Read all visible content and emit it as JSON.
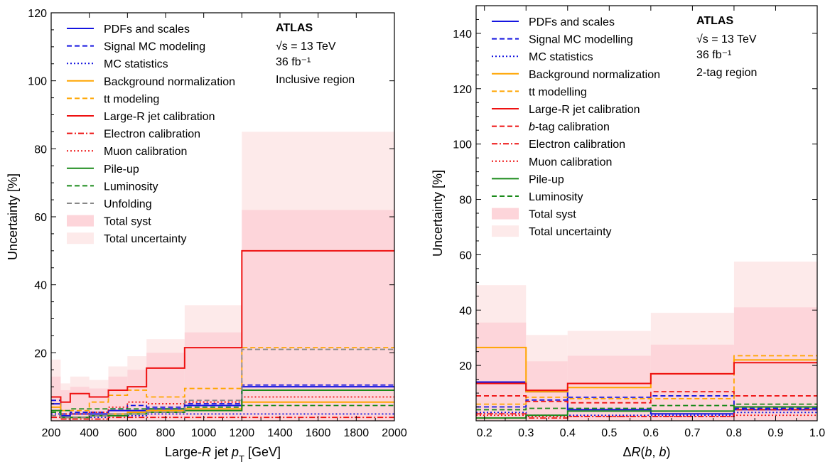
{
  "chart_data": [
    {
      "type": "line",
      "step": true,
      "xlabel": "Large-R jet pT [GeV]",
      "xlabel_parts": [
        "Large-",
        "R",
        " jet ",
        "p",
        "T",
        " [GeV]"
      ],
      "ylabel": "Uncertainty [%]",
      "xlim": [
        200,
        2000
      ],
      "ylim": [
        0,
        120
      ],
      "xticks": [
        200,
        400,
        600,
        800,
        1000,
        1200,
        1400,
        1600,
        1800,
        2000
      ],
      "yticks": [
        20,
        40,
        60,
        80,
        100,
        120
      ],
      "bin_edges": [
        200,
        250,
        300,
        400,
        500,
        600,
        700,
        900,
        1200,
        2000
      ],
      "legend_position": "top-left",
      "annotation": {
        "atlas": "ATLAS",
        "sqrt_s": "√s = 13 TeV",
        "lumi": "36 fb⁻¹",
        "region": "Inclusive region"
      },
      "bands": [
        {
          "name": "Total uncertainty",
          "color": "#fdeaea",
          "values": [
            18,
            11,
            13,
            12,
            16,
            19,
            24,
            34,
            85
          ]
        },
        {
          "name": "Total syst",
          "color": "#fdd5da",
          "values": [
            13,
            9,
            10,
            9.5,
            13,
            15,
            20,
            26,
            62
          ]
        }
      ],
      "series": [
        {
          "name": "PDFs and scales",
          "color": "#1515e0",
          "dash": "solid",
          "values": [
            5,
            1.5,
            2,
            2,
            3,
            3,
            3.5,
            4.5,
            10
          ]
        },
        {
          "name": "Signal MC modeling",
          "color": "#1515e0",
          "dash": "dashed",
          "values": [
            6,
            2,
            2.5,
            2.5,
            3.5,
            4.5,
            4,
            5,
            10.5
          ]
        },
        {
          "name": "MC statistics",
          "color": "#1515e0",
          "dash": "dotted",
          "values": [
            2,
            1,
            1,
            1,
            1.5,
            1.5,
            2,
            2,
            2
          ]
        },
        {
          "name": "Background normalization",
          "color": "#ffa500",
          "dash": "solid",
          "values": [
            4,
            1,
            1,
            1.5,
            2,
            2.5,
            3,
            3.5,
            5.5
          ]
        },
        {
          "name": "tt modeling",
          "color": "#ffa500",
          "dash": "dashed",
          "values": [
            7,
            3,
            3,
            5.5,
            7.5,
            9,
            7,
            9.5,
            21.5
          ]
        },
        {
          "name": "Large-R jet calibration",
          "color": "#ee1111",
          "dash": "solid",
          "values": [
            7,
            5.5,
            8,
            7,
            9,
            10,
            15.5,
            21.5,
            50
          ]
        },
        {
          "name": "Electron calibration",
          "color": "#ee1111",
          "dash": "dashdot",
          "values": [
            1,
            0.5,
            0.5,
            0.5,
            1,
            1,
            1,
            1,
            1
          ]
        },
        {
          "name": "Muon calibration",
          "color": "#ee1111",
          "dash": "dotted",
          "values": [
            3,
            2,
            2,
            2.5,
            4,
            5.5,
            5,
            5.5,
            7
          ]
        },
        {
          "name": "Pile-up",
          "color": "#1a8a1a",
          "dash": "solid",
          "values": [
            3,
            1,
            1,
            1.5,
            1.5,
            2,
            2.5,
            3,
            9
          ]
        },
        {
          "name": "Luminosity",
          "color": "#1a8a1a",
          "dash": "dashed",
          "values": [
            2.5,
            3,
            3.5,
            3.5,
            3.5,
            3.5,
            3.5,
            4,
            4.5
          ]
        },
        {
          "name": "Unfolding",
          "color": "#888888",
          "dash": "dashed",
          "values": [
            1.5,
            1,
            1,
            1.5,
            2,
            2,
            2.5,
            6,
            21
          ]
        }
      ]
    },
    {
      "type": "line",
      "step": true,
      "xlabel": "ΔR(b,b)",
      "xlabel_parts": [
        "Δ",
        "R",
        "(",
        "b",
        ", ",
        "b",
        ")"
      ],
      "ylabel": "Uncertainty [%]",
      "xlim": [
        0.18,
        1.0
      ],
      "ylim": [
        0,
        150
      ],
      "xticks": [
        0.2,
        0.3,
        0.4,
        0.5,
        0.6,
        0.7,
        0.8,
        0.9,
        1.0
      ],
      "xtick_labels": [
        "0.2",
        "0.3",
        "0.4",
        "0.5",
        "0.6",
        "0.7",
        "0.8",
        "0.9",
        "1.0"
      ],
      "yticks": [
        20,
        40,
        60,
        80,
        100,
        120,
        140
      ],
      "bin_edges": [
        0.18,
        0.3,
        0.4,
        0.6,
        0.8,
        1.0
      ],
      "legend_position": "top-left",
      "annotation": {
        "atlas": "ATLAS",
        "sqrt_s": "√s = 13 TeV",
        "lumi": "36 fb⁻¹",
        "region": "2-tag region"
      },
      "bands": [
        {
          "name": "Total uncertainty",
          "color": "#fdeaea",
          "values": [
            49,
            31,
            32.5,
            39,
            57.5
          ]
        },
        {
          "name": "Total syst",
          "color": "#fdd5da",
          "values": [
            35.5,
            21.5,
            23.5,
            27.5,
            41
          ]
        }
      ],
      "series": [
        {
          "name": "PDFs and scales",
          "color": "#1515e0",
          "dash": "solid",
          "values": [
            14,
            10.5,
            4,
            2.5,
            4
          ]
        },
        {
          "name": "Signal MC modelling",
          "color": "#1515e0",
          "dash": "dashed",
          "values": [
            5,
            7.5,
            8.5,
            9,
            4.5
          ]
        },
        {
          "name": "MC statistics",
          "color": "#1515e0",
          "dash": "dotted",
          "values": [
            3,
            2,
            2,
            2,
            3
          ]
        },
        {
          "name": "Background normalization",
          "color": "#ffa500",
          "dash": "solid",
          "values": [
            26.5,
            10.5,
            12,
            17,
            22
          ]
        },
        {
          "name": "tt modelling",
          "color": "#ffa500",
          "dash": "dashed",
          "values": [
            6,
            8.5,
            8,
            8,
            23.5
          ]
        },
        {
          "name": "Large-R jet calibration",
          "color": "#ee1111",
          "dash": "solid",
          "values": [
            13.5,
            11,
            13.5,
            17,
            21
          ]
        },
        {
          "name": "b-tag calibration",
          "color": "#ee1111",
          "dash": "dashed",
          "values": [
            9,
            7,
            6.5,
            10.5,
            9
          ]
        },
        {
          "name": "Electron calibration",
          "color": "#ee1111",
          "dash": "dashdot",
          "values": [
            2.5,
            1,
            1.5,
            1.5,
            4
          ]
        },
        {
          "name": "Muon calibration",
          "color": "#ee1111",
          "dash": "dotted",
          "values": [
            2,
            1.5,
            1.5,
            1.5,
            2
          ]
        },
        {
          "name": "Pile-up",
          "color": "#1a8a1a",
          "dash": "solid",
          "values": [
            1,
            2,
            3.5,
            3.5,
            5
          ]
        },
        {
          "name": "Luminosity",
          "color": "#1a8a1a",
          "dash": "dashed",
          "values": [
            4,
            4.5,
            4.5,
            5.5,
            6
          ]
        }
      ]
    }
  ]
}
